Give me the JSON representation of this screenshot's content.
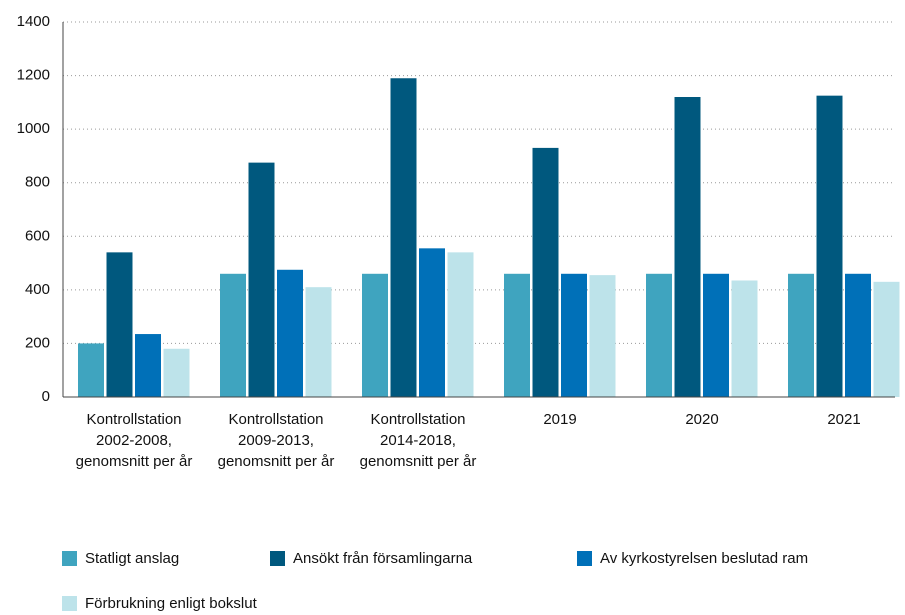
{
  "chart_data": {
    "type": "bar",
    "categories": [
      "Kontrollstation 2002-2008, genomsnitt per år",
      "Kontrollstation 2009-2013, genomsnitt per år",
      "Kontrollstation 2014-2018, genomsnitt per år",
      "2019",
      "2020",
      "2021"
    ],
    "series": [
      {
        "name": "Statligt anslag",
        "color": "#3fa4bf",
        "values": [
          200,
          460,
          460,
          460,
          460,
          460
        ]
      },
      {
        "name": "Ansökt från församlingarna",
        "color": "#00587e",
        "values": [
          540,
          875,
          1190,
          930,
          1120,
          1125
        ]
      },
      {
        "name": "Av kyrkostyrelsen beslutad ram",
        "color": "#0070b8",
        "values": [
          235,
          475,
          555,
          460,
          460,
          460
        ]
      },
      {
        "name": "Förbrukning enligt bokslut",
        "color": "#bde3ea",
        "values": [
          180,
          410,
          540,
          455,
          435,
          430
        ]
      }
    ],
    "ylim": [
      0,
      1400
    ],
    "yticks": [
      0,
      200,
      400,
      600,
      800,
      1000,
      1200,
      1400
    ],
    "grid": true
  }
}
